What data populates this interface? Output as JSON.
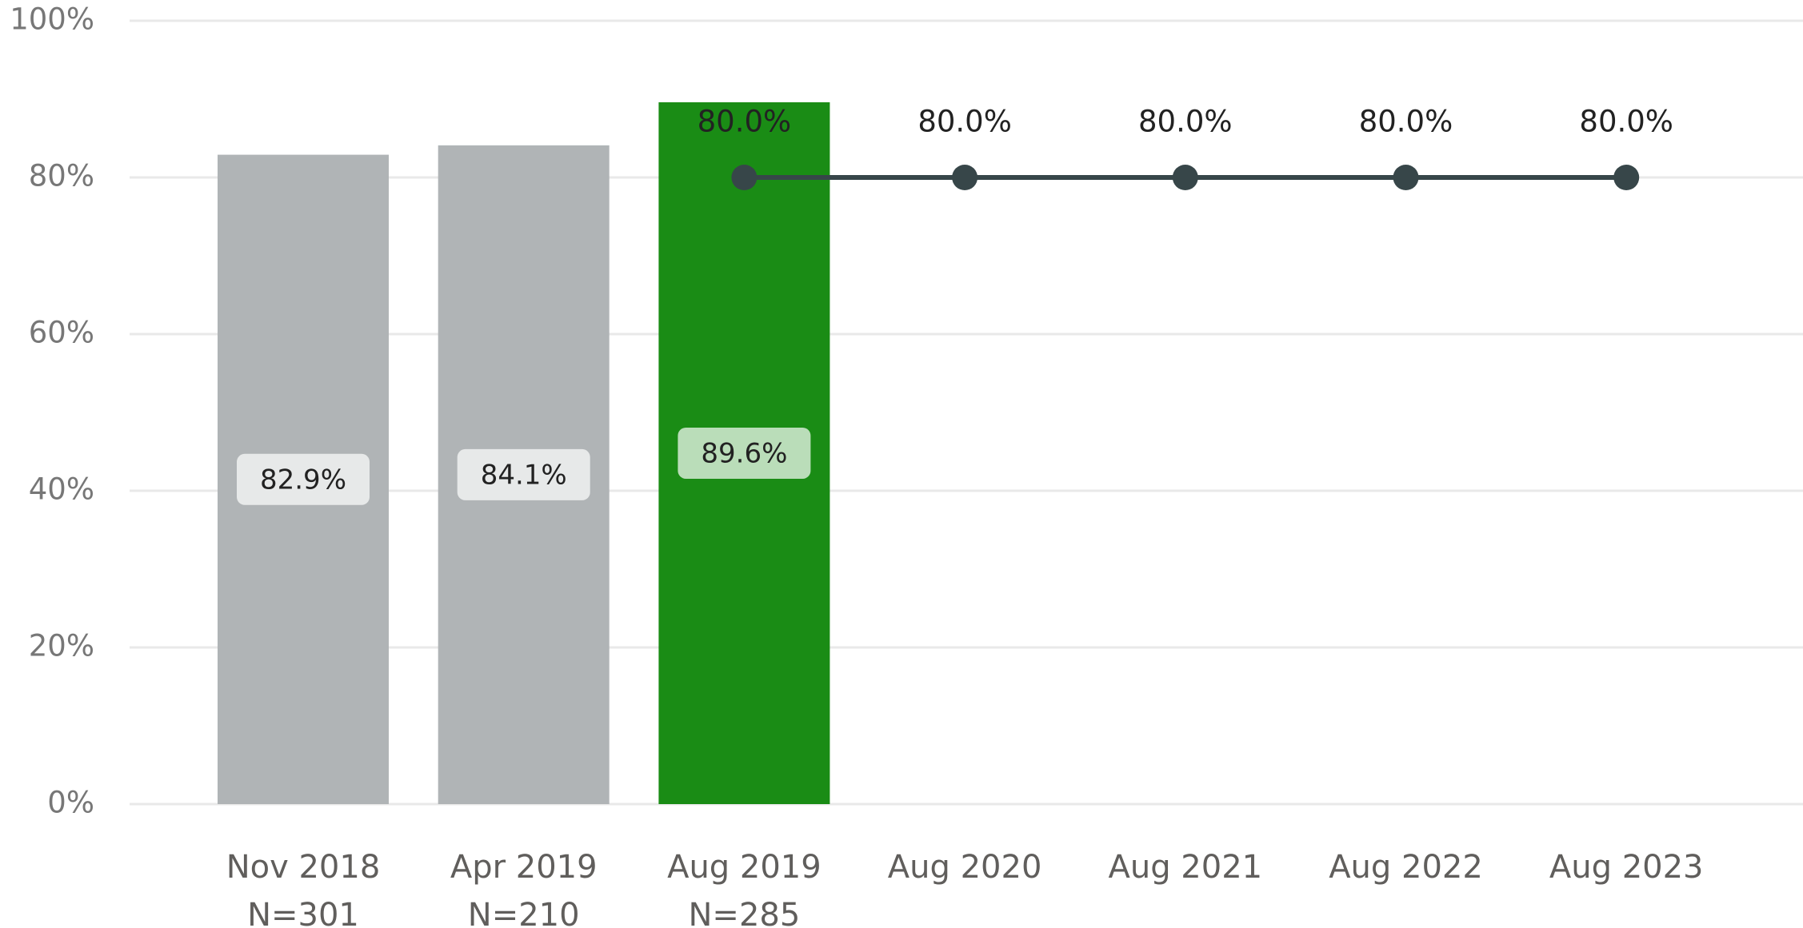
{
  "chart_data": {
    "type": "bar-line",
    "categories": [
      [
        "Nov 2018",
        "N=301"
      ],
      [
        "Apr 2019",
        "N=210"
      ],
      [
        "Aug 2019",
        "N=285"
      ],
      [
        "Aug 2020"
      ],
      [
        "Aug 2021"
      ],
      [
        "Aug 2022"
      ],
      [
        "Aug 2023"
      ]
    ],
    "series": [
      {
        "type": "bar",
        "colors": [
          "#b0b4b6",
          "#b0b4b6",
          "#1a8c15",
          null,
          null,
          null,
          null
        ],
        "values": [
          82.9,
          84.1,
          89.6,
          null,
          null,
          null,
          null
        ],
        "value_labels": [
          "82.9%",
          "84.1%",
          "89.6%",
          null,
          null,
          null,
          null
        ]
      },
      {
        "type": "line",
        "color": "#374649",
        "values": [
          null,
          null,
          80,
          80,
          80,
          80,
          80
        ],
        "value_labels": [
          null,
          null,
          "80.0%",
          "80.0%",
          "80.0%",
          "80.0%",
          "80.0%"
        ]
      }
    ],
    "ylim": [
      0,
      100
    ],
    "yticks": [
      {
        "value": 0,
        "label": "0%"
      },
      {
        "value": 20,
        "label": "20%"
      },
      {
        "value": 40,
        "label": "40%"
      },
      {
        "value": 60,
        "label": "60%"
      },
      {
        "value": 80,
        "label": "80%"
      },
      {
        "value": 100,
        "label": "100%"
      }
    ],
    "grid": true
  }
}
